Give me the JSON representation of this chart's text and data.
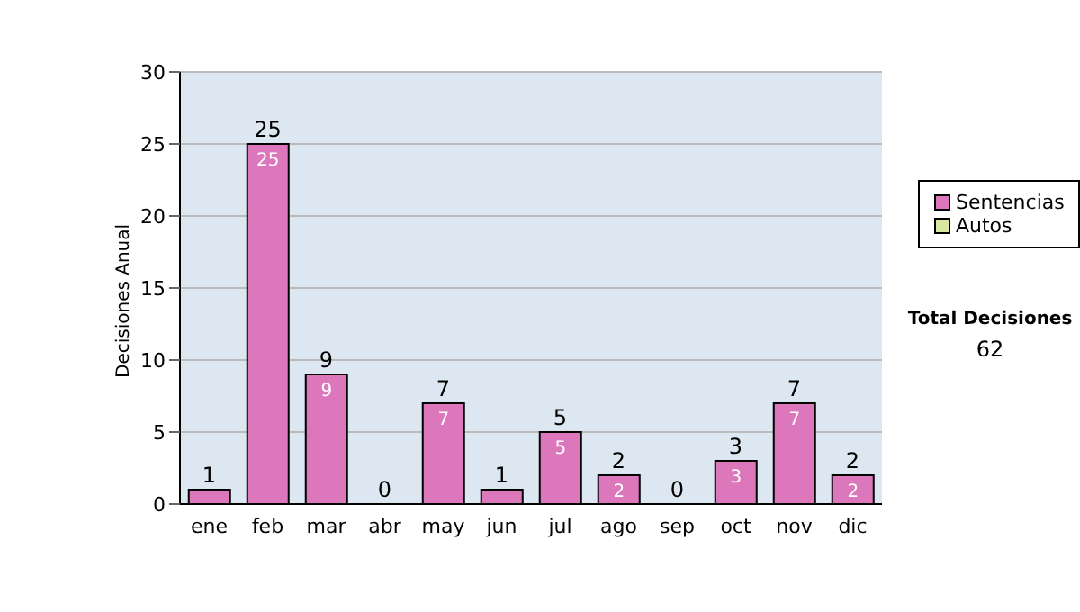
{
  "chart_data": {
    "type": "bar",
    "stacked": true,
    "ylabel": "Decisiones Anual",
    "categories": [
      "ene",
      "feb",
      "mar",
      "abr",
      "may",
      "jun",
      "jul",
      "ago",
      "sep",
      "oct",
      "nov",
      "dic"
    ],
    "series": [
      {
        "name": "Sentencias",
        "color": "#dd77bb",
        "values": [
          1,
          25,
          9,
          0,
          7,
          1,
          5,
          2,
          0,
          3,
          7,
          2
        ],
        "value_labels": [
          null,
          "25",
          "9",
          null,
          "7",
          null,
          "5",
          "2",
          null,
          "3",
          "7",
          "2"
        ]
      },
      {
        "name": "Autos",
        "color": "#d8e8a0",
        "values": [
          0,
          0,
          0,
          0,
          0,
          0,
          0,
          0,
          0,
          0,
          0,
          0
        ]
      }
    ],
    "totals": [
      "1",
      "25",
      "9",
      "0",
      "7",
      "1",
      "5",
      "2",
      "0",
      "3",
      "7",
      "2"
    ],
    "ylim": [
      0,
      30
    ],
    "yticks": [
      0,
      5,
      10,
      15,
      20,
      25,
      30
    ],
    "grid": "y",
    "legend": "right",
    "annotations": [
      "Total Decisiones",
      "62"
    ]
  }
}
